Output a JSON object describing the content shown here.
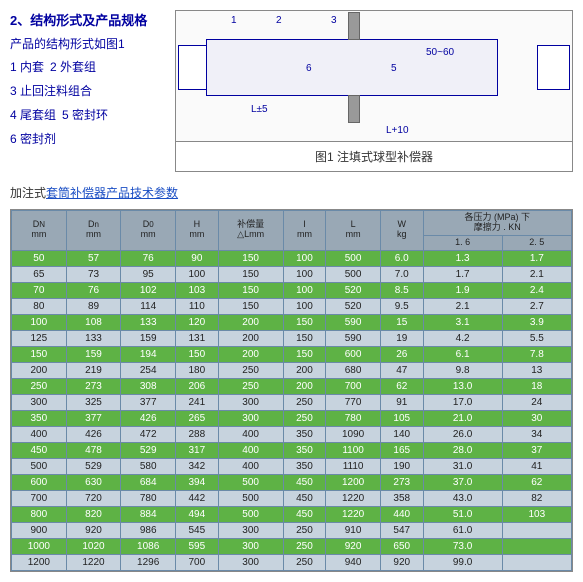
{
  "header": {
    "title": "2、结构形式及产品规格",
    "desc": "产品的结构形式如图1",
    "parts": [
      "1 内套",
      "2 外套组",
      "3 止回注料组合",
      "4 尾套组",
      "5 密封环",
      "6 密封剂"
    ]
  },
  "diagram": {
    "caption": "图1 注填式球型补偿器",
    "dim1": "50~60",
    "dim2": "L±5",
    "dim3": "L+10",
    "numbers": [
      "1",
      "2",
      "3",
      "4",
      "5",
      "6"
    ]
  },
  "link": {
    "prefix": "加注式",
    "linked": "套筒补偿器产品技术参数"
  },
  "table": {
    "head": {
      "c1a": "D",
      "c1b": "N",
      "c1u": "mm",
      "c2a": "D",
      "c2b": "n",
      "c2u": "mm",
      "c3a": "D",
      "c3b": "0",
      "c3u": "mm",
      "c4a": "H",
      "c4u": "mm",
      "c5a": "补偿量",
      "c5b": "△Lmm",
      "c6a": "I",
      "c6u": "mm",
      "c7a": "L",
      "c7u": "mm",
      "c8a": "W",
      "c8u": "kg",
      "c9": "各压力 (MPa) 下",
      "c9b": "摩擦力 . KN",
      "c9s1": "1. 6",
      "c9s2": "2. 5"
    },
    "rows": [
      [
        "50",
        "57",
        "76",
        "90",
        "150",
        "100",
        "500",
        "6.0",
        "1.3",
        "1.7"
      ],
      [
        "65",
        "73",
        "95",
        "100",
        "150",
        "100",
        "500",
        "7.0",
        "1.7",
        "2.1"
      ],
      [
        "70",
        "76",
        "102",
        "103",
        "150",
        "100",
        "520",
        "8.5",
        "1.9",
        "2.4"
      ],
      [
        "80",
        "89",
        "114",
        "110",
        "150",
        "100",
        "520",
        "9.5",
        "2.1",
        "2.7"
      ],
      [
        "100",
        "108",
        "133",
        "120",
        "200",
        "150",
        "590",
        "15",
        "3.1",
        "3.9"
      ],
      [
        "125",
        "133",
        "159",
        "131",
        "200",
        "150",
        "590",
        "19",
        "4.2",
        "5.5"
      ],
      [
        "150",
        "159",
        "194",
        "150",
        "200",
        "150",
        "600",
        "26",
        "6.1",
        "7.8"
      ],
      [
        "200",
        "219",
        "254",
        "180",
        "250",
        "200",
        "680",
        "47",
        "9.8",
        "13"
      ],
      [
        "250",
        "273",
        "308",
        "206",
        "250",
        "200",
        "700",
        "62",
        "13.0",
        "18"
      ],
      [
        "300",
        "325",
        "377",
        "241",
        "300",
        "250",
        "770",
        "91",
        "17.0",
        "24"
      ],
      [
        "350",
        "377",
        "426",
        "265",
        "300",
        "250",
        "780",
        "105",
        "21.0",
        "30"
      ],
      [
        "400",
        "426",
        "472",
        "288",
        "400",
        "350",
        "1090",
        "140",
        "26.0",
        "34"
      ],
      [
        "450",
        "478",
        "529",
        "317",
        "400",
        "350",
        "1100",
        "165",
        "28.0",
        "37"
      ],
      [
        "500",
        "529",
        "580",
        "342",
        "400",
        "350",
        "1110",
        "190",
        "31.0",
        "41"
      ],
      [
        "600",
        "630",
        "684",
        "394",
        "500",
        "450",
        "1200",
        "273",
        "37.0",
        "62"
      ],
      [
        "700",
        "720",
        "780",
        "442",
        "500",
        "450",
        "1220",
        "358",
        "43.0",
        "82"
      ],
      [
        "800",
        "820",
        "884",
        "494",
        "500",
        "450",
        "1220",
        "440",
        "51.0",
        "103"
      ],
      [
        "900",
        "920",
        "986",
        "545",
        "300",
        "250",
        "910",
        "547",
        "61.0",
        ""
      ],
      [
        "1000",
        "1020",
        "1086",
        "595",
        "300",
        "250",
        "920",
        "650",
        "73.0",
        ""
      ],
      [
        "1200",
        "1220",
        "1296",
        "700",
        "300",
        "250",
        "940",
        "920",
        "99.0",
        ""
      ]
    ]
  }
}
